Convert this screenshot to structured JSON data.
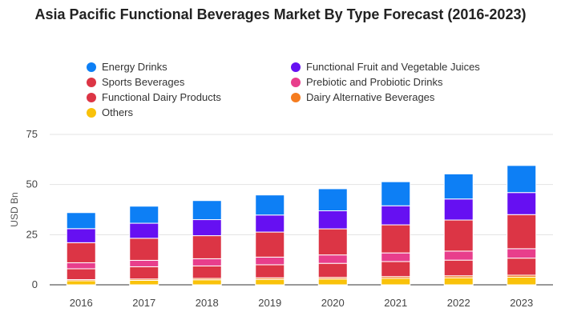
{
  "chart_data": {
    "type": "bar",
    "stacked": true,
    "title": "Asia Pacific Functional Beverages Market By Type Forecast (2016-2023)",
    "xlabel": "",
    "ylabel": "USD Bn",
    "ylim": [
      0,
      75
    ],
    "yticks": [
      "0",
      "25",
      "50",
      "75"
    ],
    "grid": true,
    "legend_position": "top",
    "categories": [
      "2016",
      "2017",
      "2018",
      "2019",
      "2020",
      "2021",
      "2022",
      "2023"
    ],
    "series": [
      {
        "name": "Others",
        "color": "#f9c20a",
        "values": [
          2.0,
          2.2,
          2.5,
          2.7,
          2.9,
          3.2,
          3.5,
          3.8
        ]
      },
      {
        "name": "Dairy Alternative Beverages",
        "color": "#f57c1f",
        "values": [
          0.6,
          0.7,
          0.7,
          0.8,
          0.8,
          0.9,
          1.0,
          1.0
        ]
      },
      {
        "name": "Functional Dairy Products",
        "color": "#dc3545",
        "values": [
          5.4,
          6.1,
          6.2,
          6.5,
          7.0,
          7.5,
          7.8,
          8.5
        ]
      },
      {
        "name": "Prebiotic and Probiotic Drinks",
        "color": "#e83e8c",
        "values": [
          3.0,
          3.2,
          3.6,
          3.8,
          4.2,
          4.3,
          4.5,
          4.7
        ]
      },
      {
        "name": "Sports Beverages",
        "color": "#dc3545",
        "values": [
          10.0,
          11.0,
          11.5,
          12.5,
          13.0,
          14.0,
          15.5,
          17.0
        ]
      },
      {
        "name": "Functional Fruit and Vegetable Juices",
        "color": "#6610f2",
        "values": [
          7.0,
          7.5,
          8.0,
          8.5,
          9.0,
          9.5,
          10.5,
          11.0
        ]
      },
      {
        "name": "Energy Drinks",
        "color": "#0d7ff5",
        "values": [
          8.0,
          8.5,
          9.5,
          10.0,
          11.0,
          12.0,
          12.5,
          13.5
        ]
      }
    ]
  },
  "legend": [
    {
      "name": "Energy Drinks",
      "color": "#0d7ff5"
    },
    {
      "name": "Functional Fruit and Vegetable Juices",
      "color": "#6610f2"
    },
    {
      "name": "Sports Beverages",
      "color": "#dc3545"
    },
    {
      "name": "Prebiotic and Probiotic Drinks",
      "color": "#e83e8c"
    },
    {
      "name": "Functional Dairy Products",
      "color": "#dc3545"
    },
    {
      "name": "Dairy Alternative Beverages",
      "color": "#f57c1f"
    },
    {
      "name": "Others",
      "color": "#f9c20a"
    }
  ]
}
